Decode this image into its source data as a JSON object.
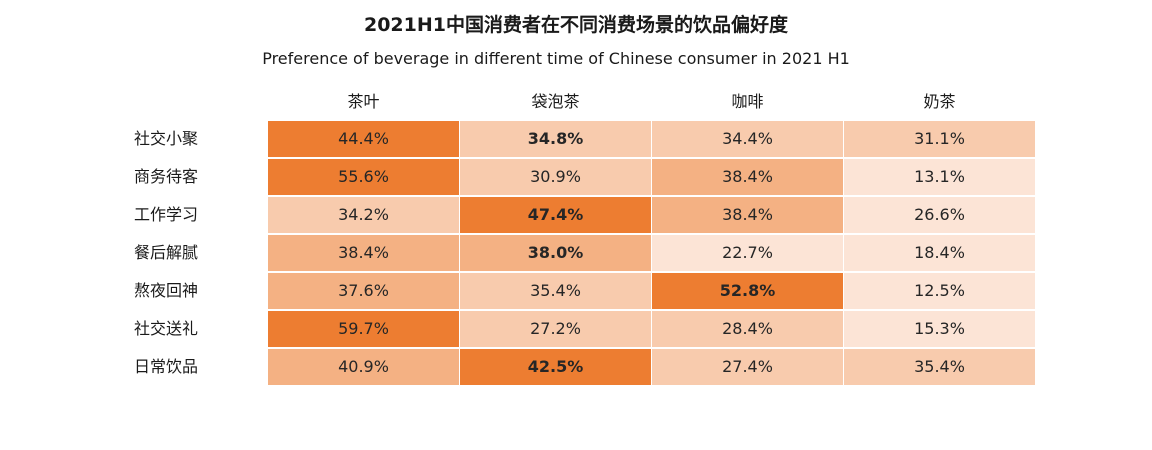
{
  "chart_data": {
    "type": "heatmap",
    "title": "2021H1中国消费者在不同消费场景的饮品偏好度",
    "subtitle": "Preference of beverage in different time of Chinese consumer in 2021 H1",
    "columns": [
      "茶叶",
      "袋泡茶",
      "咖啡",
      "奶茶"
    ],
    "rows": [
      "社交小聚",
      "商务待客",
      "工作学习",
      "餐后解腻",
      "熬夜回神",
      "社交送礼",
      "日常饮品"
    ],
    "values": [
      [
        44.4,
        34.8,
        34.4,
        31.1
      ],
      [
        55.6,
        30.9,
        38.4,
        13.1
      ],
      [
        34.2,
        47.4,
        38.4,
        26.6
      ],
      [
        38.4,
        38.0,
        22.7,
        18.4
      ],
      [
        37.6,
        35.4,
        52.8,
        12.5
      ],
      [
        59.7,
        27.2,
        28.4,
        15.3
      ],
      [
        40.9,
        42.5,
        27.4,
        35.4
      ]
    ],
    "labels": [
      [
        "44.4%",
        "34.8%",
        "34.4%",
        "31.1%"
      ],
      [
        "55.6%",
        "30.9%",
        "38.4%",
        "13.1%"
      ],
      [
        "34.2%",
        "47.4%",
        "38.4%",
        "26.6%"
      ],
      [
        "38.4%",
        "38.0%",
        "22.7%",
        "18.4%"
      ],
      [
        "37.6%",
        "35.4%",
        "52.8%",
        "12.5%"
      ],
      [
        "59.7%",
        "27.2%",
        "28.4%",
        "15.3%"
      ],
      [
        "40.9%",
        "42.5%",
        "27.4%",
        "35.4%"
      ]
    ],
    "bold_cells": [
      [
        0,
        1
      ],
      [
        2,
        1
      ],
      [
        3,
        1
      ],
      [
        4,
        2
      ],
      [
        6,
        1
      ]
    ],
    "colors": {
      "strong": "#ed7d31",
      "medium": "#f4b183",
      "light": "#f8cbad",
      "lightest": "#fce4d6"
    }
  }
}
